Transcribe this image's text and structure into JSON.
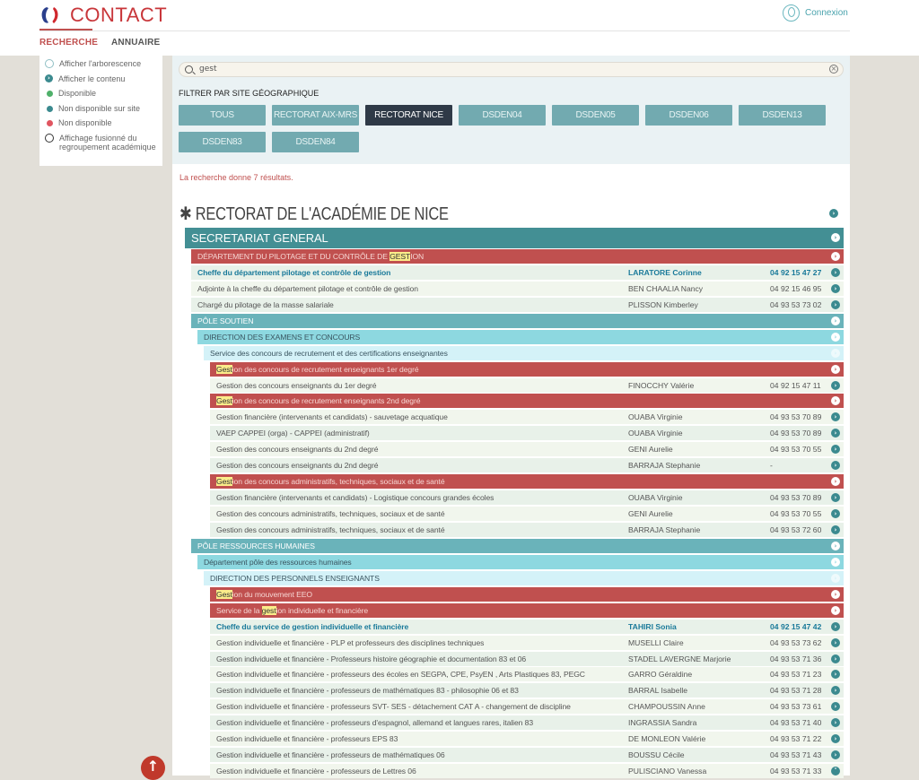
{
  "header": {
    "app_title": "CONTACT",
    "nav": [
      {
        "label": "RECHERCHE",
        "active": true
      },
      {
        "label": "ANNUAIRE",
        "active": false
      }
    ],
    "login": "Connexion"
  },
  "legend": [
    {
      "label": "Afficher l'arborescence",
      "icon": "eye-icon",
      "color": "#8fbfc4"
    },
    {
      "label": "Afficher le contenu",
      "icon": "arrow-circle-icon",
      "color": "#3b8a8f"
    },
    {
      "label": "Disponible",
      "icon": "status-dot-icon",
      "color": "#4fb06a"
    },
    {
      "label": "Non disponible sur site",
      "icon": "status-dot-icon",
      "color": "#3b8a8f"
    },
    {
      "label": "Non disponible",
      "icon": "status-dot-icon",
      "color": "#e05560"
    },
    {
      "label": "Affichage fusionné du regroupement académique",
      "icon": "merge-icon",
      "color": "#333333"
    }
  ],
  "search": {
    "value": "gest"
  },
  "filter": {
    "label": "FILTRER PAR SITE GÉOGRAPHIQUE",
    "buttons": [
      "TOUS",
      "RECTORAT AIX-MRS",
      "RECTORAT NICE",
      "DSDEN04",
      "DSDEN05",
      "DSDEN06",
      "DSDEN13",
      "DSDEN83",
      "DSDEN84"
    ],
    "active": "RECTORAT NICE"
  },
  "result_text": "La recherche donne 7 résultats.",
  "title": "RECTORAT DE L'ACADÉMIE DE NICE",
  "colors": {
    "l0": "#438f94",
    "red": "#c0504f",
    "teal": "#6ab3ba",
    "light": "#8dd8e0",
    "pale": "#d4f2f8",
    "chief": "#1a7a9a"
  },
  "rows": [
    {
      "type": "l0",
      "indent": 0,
      "pre": "SECRETARIAT GENERAL"
    },
    {
      "type": "red",
      "indent": 1,
      "pre": "DÉPARTEMENT DU PILOTAGE ET DU CONTRÔLE DE ",
      "hl": "GEST",
      "post": "ION"
    },
    {
      "type": "chief",
      "indent": 1,
      "pre": "Cheffe du département pilotage et contrôle de gestion",
      "name": "LARATORE Corinne",
      "phone": "04 92 15 47 27"
    },
    {
      "type": "person",
      "indent": 1,
      "pre": "Adjointe à la cheffe du département pilotage et contrôle de gestion",
      "name": "BEN CHAALIA Nancy",
      "phone": "04 92 15 46 95"
    },
    {
      "type": "person",
      "indent": 1,
      "pre": "Chargé du pilotage de la masse salariale",
      "name": "PLISSON Kimberley",
      "phone": "04 93 53 73 02"
    },
    {
      "type": "teal",
      "indent": 1,
      "pre": "PÔLE SOUTIEN"
    },
    {
      "type": "light",
      "indent": 2,
      "pre": "DIRECTION DES EXAMENS ET CONCOURS"
    },
    {
      "type": "pale",
      "indent": 3,
      "pre": "Service des concours de recrutement et des certifications enseignantes"
    },
    {
      "type": "red",
      "indent": 4,
      "hl": "Gest",
      "post": "ion des concours de recrutement enseignants 1er degré"
    },
    {
      "type": "person",
      "indent": 4,
      "pre": "Gestion des concours enseignants du 1er degré",
      "name": "FINOCCHY Valérie",
      "phone": "04 92 15 47 11"
    },
    {
      "type": "red",
      "indent": 4,
      "hl": "Gest",
      "post": "ion des concours de recrutement enseignants 2nd degré"
    },
    {
      "type": "person",
      "indent": 4,
      "pre": "Gestion financière (intervenants et candidats) - sauvetage acquatique",
      "name": "OUABA Virginie",
      "phone": "04 93 53 70 89"
    },
    {
      "type": "person",
      "indent": 4,
      "pre": "VAEP CAPPEI (orga) - CAPPEI (administratif)",
      "name": "OUABA Virginie",
      "phone": "04 93 53 70 89"
    },
    {
      "type": "person",
      "indent": 4,
      "pre": "Gestion des concours enseignants du 2nd degré",
      "name": "GENI Aurelie",
      "phone": "04 93 53 70 55"
    },
    {
      "type": "person",
      "indent": 4,
      "pre": "Gestion des concours enseignants du 2nd degré",
      "name": "BARRAJA Stephanie",
      "phone": "-"
    },
    {
      "type": "red",
      "indent": 4,
      "hl": "Gest",
      "post": "ion des concours administratifs, techniques, sociaux et de santé"
    },
    {
      "type": "person",
      "indent": 4,
      "pre": "Gestion financière (intervenants et candidats) - Logistique concours grandes écoles",
      "name": "OUABA Virginie",
      "phone": "04 93 53 70 89"
    },
    {
      "type": "person",
      "indent": 4,
      "pre": "Gestion des concours administratifs, techniques, sociaux et de santé",
      "name": "GENI Aurelie",
      "phone": "04 93 53 70 55"
    },
    {
      "type": "person",
      "indent": 4,
      "pre": "Gestion des concours administratifs, techniques, sociaux et de santé",
      "name": "BARRAJA Stephanie",
      "phone": "04 93 53 72 60"
    },
    {
      "type": "teal",
      "indent": 1,
      "pre": "PÔLE RESSOURCES HUMAINES"
    },
    {
      "type": "light",
      "indent": 2,
      "pre": "Département pôle des ressources humaines"
    },
    {
      "type": "pale",
      "indent": 3,
      "pre": "DIRECTION DES PERSONNELS ENSEIGNANTS"
    },
    {
      "type": "red",
      "indent": 4,
      "hl": "Gest",
      "post": "ion du mouvement EEO"
    },
    {
      "type": "red",
      "indent": 4,
      "pre": "Service de la ",
      "hl": "gest",
      "post": "ion individuelle et financière"
    },
    {
      "type": "chief",
      "indent": 4,
      "pre": "Cheffe du service de gestion individuelle et financière",
      "name": "TAHIRI Sonia",
      "phone": "04 92 15 47 42"
    },
    {
      "type": "person",
      "indent": 4,
      "pre": "Gestion individuelle et financière - PLP et professeurs des disciplines techniques",
      "name": "MUSELLI Claire",
      "phone": "04 93 53 73 62"
    },
    {
      "type": "person",
      "indent": 4,
      "pre": "Gestion individuelle et financière - Professeurs histoire géographie et documentation 83 et 06",
      "name": "STADEL LAVERGNE Marjorie",
      "phone": "04 93 53 71 36"
    },
    {
      "type": "person",
      "indent": 4,
      "pre": "Gestion individuelle et financière - professeurs des écoles en SEGPA, CPE, PsyEN , Arts Plastiques 83, PEGC",
      "name": "GARRO Géraldine",
      "phone": "04 93 53 71 23"
    },
    {
      "type": "person",
      "indent": 4,
      "pre": "Gestion individuelle et financière - professeurs de mathématiques 83 - philosophie 06 et 83",
      "name": "BARRAL Isabelle",
      "phone": "04 93 53 71 28"
    },
    {
      "type": "person",
      "indent": 4,
      "pre": "Gestion individuelle et financière - professeurs SVT- SES - détachement CAT A - changement de discipline",
      "name": "CHAMPOUSSIN Anne",
      "phone": "04 93 53 73 61"
    },
    {
      "type": "person",
      "indent": 4,
      "pre": "Gestion individuelle et financière - professeurs d'espagnol, allemand et langues rares, italien 83",
      "name": "INGRASSIA Sandra",
      "phone": "04 93 53 71 40"
    },
    {
      "type": "person",
      "indent": 4,
      "pre": "Gestion individuelle et financière - professeurs EPS 83",
      "name": "DE MONLEON Valérie",
      "phone": "04 93 53 71 22"
    },
    {
      "type": "person",
      "indent": 4,
      "pre": "Gestion individuelle et financière - professeurs de mathématiques 06",
      "name": "BOUSSU Cécile",
      "phone": "04 93 53 71 43"
    },
    {
      "type": "person",
      "indent": 4,
      "pre": "Gestion individuelle et financière - professeurs de Lettres 06",
      "name": "PULISCIANO Vanessa",
      "phone": "04 93 53 71 33",
      "expanded": true
    }
  ]
}
